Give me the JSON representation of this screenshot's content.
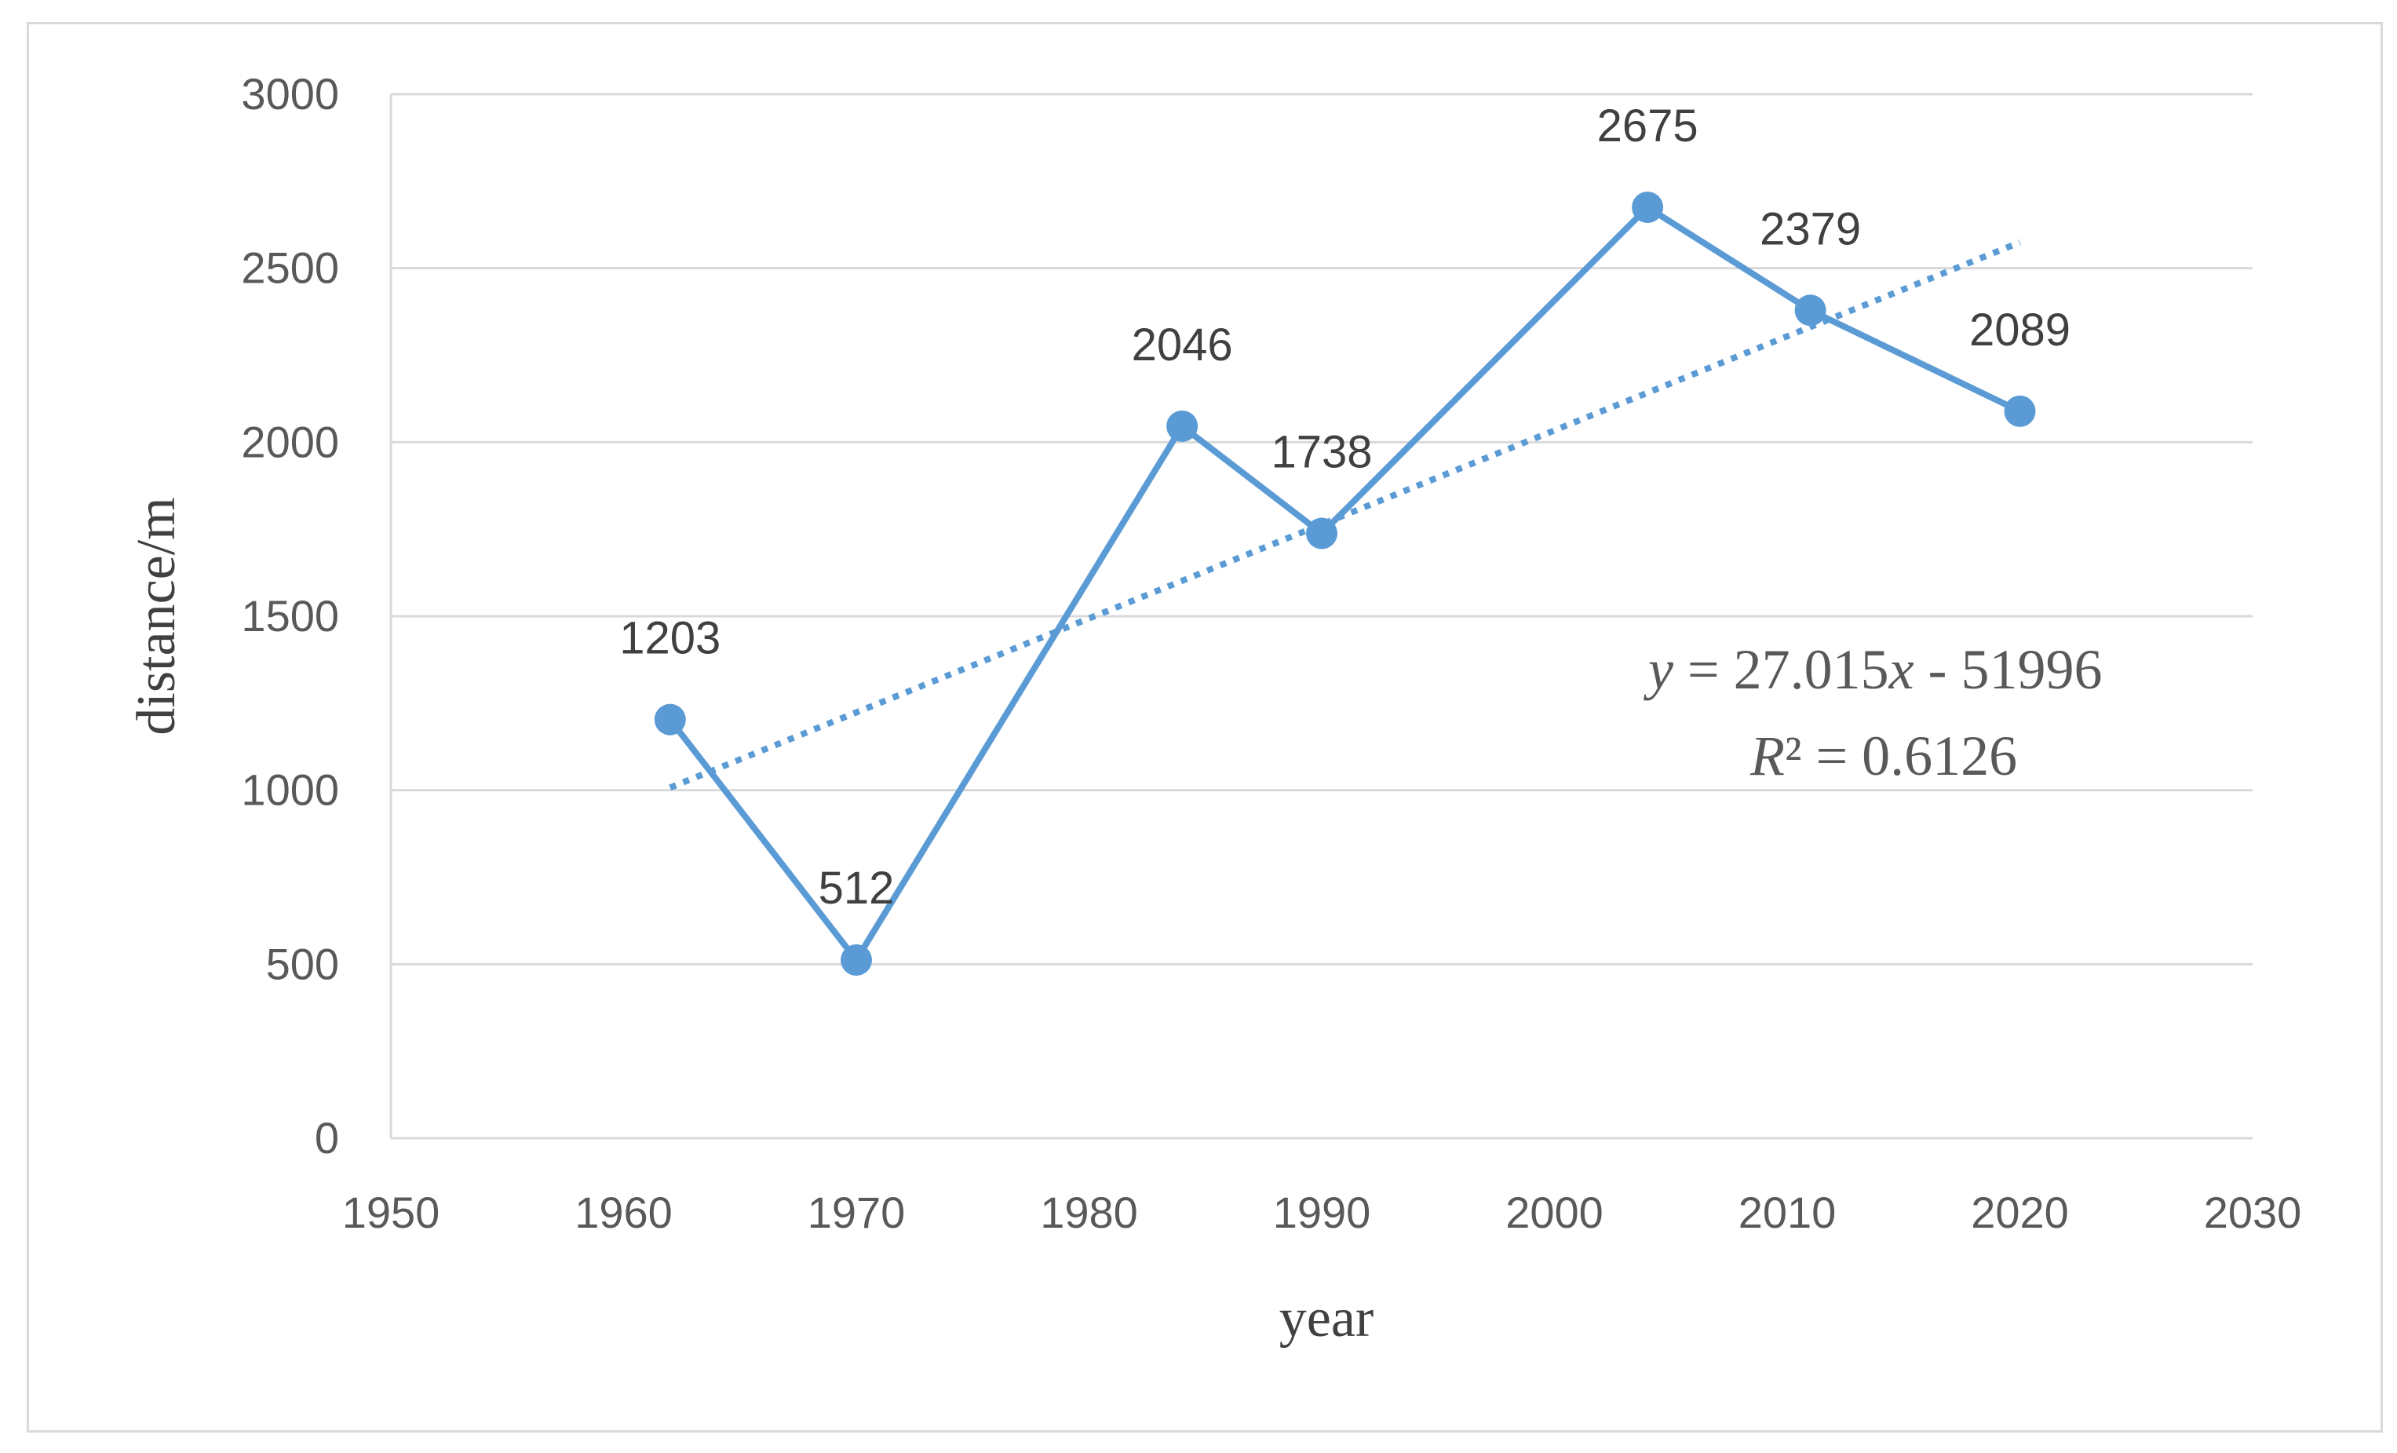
{
  "chart_data": {
    "type": "scatter",
    "x": [
      1962,
      1970,
      1984,
      1990,
      2004,
      2011,
      2020
    ],
    "series": [
      {
        "values": [
          1203,
          512,
          2046,
          1738,
          2675,
          2379,
          2089
        ],
        "data_labels": [
          "1203",
          "512",
          "2046",
          "1738",
          "2675",
          "2379",
          "2089"
        ],
        "color": "#5b9bd5",
        "lines": true,
        "markers": true
      }
    ],
    "trendline": {
      "type": "linear",
      "slope": 27.015,
      "intercept": -51996,
      "r2": 0.6126,
      "style": "dotted",
      "color": "#5b9bd5",
      "equation_text": {
        "y": "y",
        "eq": " = 27.015",
        "x": "x",
        "rest": " - 51996"
      },
      "r2_text": {
        "r": "R",
        "rest": "² = 0.6126"
      }
    },
    "xlabel": "year",
    "ylabel": "distance/m",
    "xlim": [
      1950,
      2030
    ],
    "ylim": [
      0,
      3000
    ],
    "xticks": [
      "1950",
      "1960",
      "1970",
      "1980",
      "1990",
      "2000",
      "2010",
      "2020",
      "2030"
    ],
    "yticks": [
      "0",
      "500",
      "1000",
      "1500",
      "2000",
      "2500",
      "3000"
    ],
    "grid": "horizontal",
    "legend": "none",
    "colors": {
      "series": "#5b9bd5",
      "grid": "#d9d9d9",
      "tick_text": "#595959"
    }
  }
}
